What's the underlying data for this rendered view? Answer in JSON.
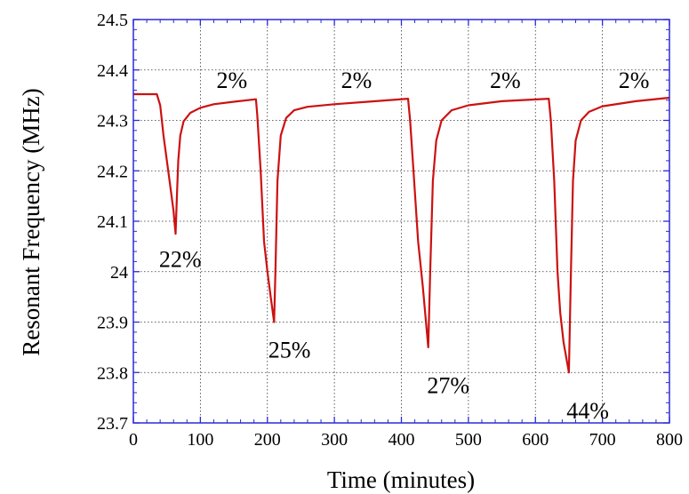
{
  "chart_data": {
    "type": "line",
    "xlabel": "Time (minutes)",
    "ylabel": "Resonant Frequency (MHz)",
    "xlim": [
      0,
      800
    ],
    "ylim": [
      23.7,
      24.5
    ],
    "x_ticks": [
      "0",
      "100",
      "200",
      "300",
      "400",
      "500",
      "600",
      "700",
      "800"
    ],
    "y_ticks": [
      "23.7",
      "23.8",
      "23.9",
      "24",
      "24.1",
      "24.2",
      "24.3",
      "24.4",
      "24.5"
    ],
    "grid": true,
    "series": [
      {
        "color": "#cc1111",
        "points": [
          [
            0,
            24.352
          ],
          [
            35,
            24.352
          ],
          [
            40,
            24.33
          ],
          [
            45,
            24.27
          ],
          [
            50,
            24.22
          ],
          [
            55,
            24.17
          ],
          [
            60,
            24.12
          ],
          [
            63,
            24.075
          ],
          [
            65,
            24.15
          ],
          [
            67,
            24.22
          ],
          [
            70,
            24.27
          ],
          [
            75,
            24.298
          ],
          [
            85,
            24.315
          ],
          [
            100,
            24.325
          ],
          [
            120,
            24.332
          ],
          [
            150,
            24.337
          ],
          [
            183,
            24.342
          ],
          [
            185,
            24.31
          ],
          [
            190,
            24.2
          ],
          [
            195,
            24.06
          ],
          [
            200,
            24.0
          ],
          [
            205,
            23.95
          ],
          [
            210,
            23.9
          ],
          [
            212,
            24.0
          ],
          [
            215,
            24.18
          ],
          [
            220,
            24.27
          ],
          [
            228,
            24.305
          ],
          [
            240,
            24.32
          ],
          [
            260,
            24.327
          ],
          [
            300,
            24.332
          ],
          [
            350,
            24.337
          ],
          [
            410,
            24.343
          ],
          [
            413,
            24.3
          ],
          [
            418,
            24.2
          ],
          [
            425,
            24.06
          ],
          [
            432,
            23.97
          ],
          [
            440,
            23.85
          ],
          [
            443,
            24.0
          ],
          [
            447,
            24.18
          ],
          [
            452,
            24.26
          ],
          [
            460,
            24.3
          ],
          [
            475,
            24.32
          ],
          [
            500,
            24.33
          ],
          [
            550,
            24.338
          ],
          [
            620,
            24.343
          ],
          [
            623,
            24.3
          ],
          [
            628,
            24.18
          ],
          [
            633,
            24.0
          ],
          [
            637,
            23.92
          ],
          [
            642,
            23.86
          ],
          [
            646,
            23.83
          ],
          [
            650,
            23.8
          ],
          [
            653,
            24.0
          ],
          [
            656,
            24.18
          ],
          [
            660,
            24.26
          ],
          [
            668,
            24.3
          ],
          [
            680,
            24.317
          ],
          [
            700,
            24.328
          ],
          [
            750,
            24.338
          ],
          [
            800,
            24.345
          ]
        ]
      }
    ],
    "annotations": [
      {
        "text": "2%",
        "x": 147,
        "y": 24.38
      },
      {
        "text": "2%",
        "x": 333,
        "y": 24.38
      },
      {
        "text": "2%",
        "x": 555,
        "y": 24.38
      },
      {
        "text": "2%",
        "x": 747,
        "y": 24.38
      },
      {
        "text": "22%",
        "x": 70,
        "y": 24.025
      },
      {
        "text": "25%",
        "x": 233,
        "y": 23.845
      },
      {
        "text": "27%",
        "x": 470,
        "y": 23.775
      },
      {
        "text": "44%",
        "x": 678,
        "y": 23.725
      }
    ]
  }
}
